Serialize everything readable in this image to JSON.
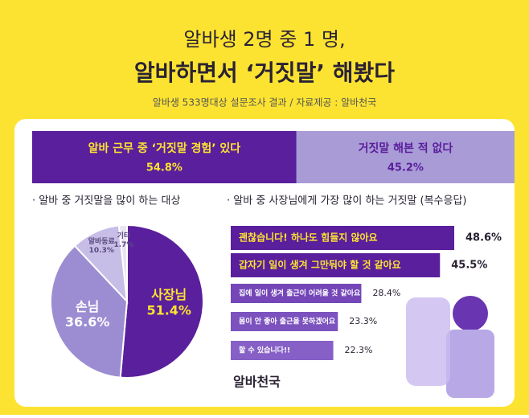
{
  "header": {
    "title_line1": "알바생 2명 중 1 명,",
    "title_line2": "알바하면서 ‘거짓말’ 해봤다",
    "subtitle": "알바생 533명대상 설문조사 결과 / 자료제공 : 알바천국"
  },
  "chart_data": [
    {
      "type": "split",
      "categories": [
        "알바 근무 중 ‘거짓말 경험’ 있다",
        "거짓말 해본 적 없다"
      ],
      "values": [
        54.8,
        45.2
      ],
      "value_labels": [
        "54.8%",
        "45.2%"
      ],
      "colors": [
        "#5a1f9c",
        "#a99bd6"
      ]
    },
    {
      "type": "pie",
      "title": "· 알바 중 거짓말을 많이 하는 대상",
      "categories": [
        "사장님",
        "손님",
        "알바동료",
        "기타"
      ],
      "values": [
        51.4,
        36.6,
        10.3,
        1.7
      ],
      "value_labels": [
        "51.4%",
        "36.6%",
        "10.3%",
        "1.7%"
      ],
      "colors": [
        "#5a1f9c",
        "#9c8dd2",
        "#c6bee6",
        "#e8e4f4"
      ]
    },
    {
      "type": "hbar",
      "title": "· 알바 중 사장님에게 가장 많이 하는 거짓말 (복수응답)",
      "categories": [
        "괜찮습니다! 하나도 힘들지 않아요",
        "갑자기 일이 생겨 그만둬야 할 것 같아요",
        "집에 일이 생겨 출근이 어려울 것 같아요",
        "몸이 안 좋아 출근을 못하겠어요",
        "할 수 있습니다!!"
      ],
      "values": [
        48.6,
        45.5,
        28.4,
        23.3,
        22.3
      ],
      "value_labels": [
        "48.6%",
        "45.5%",
        "28.4%",
        "23.3%",
        "22.3%"
      ],
      "colors": [
        "#5a1f9c",
        "#5a1f9c",
        "#7446b8",
        "#7c52bf",
        "#8660c6"
      ]
    }
  ],
  "logo": "알바천국"
}
